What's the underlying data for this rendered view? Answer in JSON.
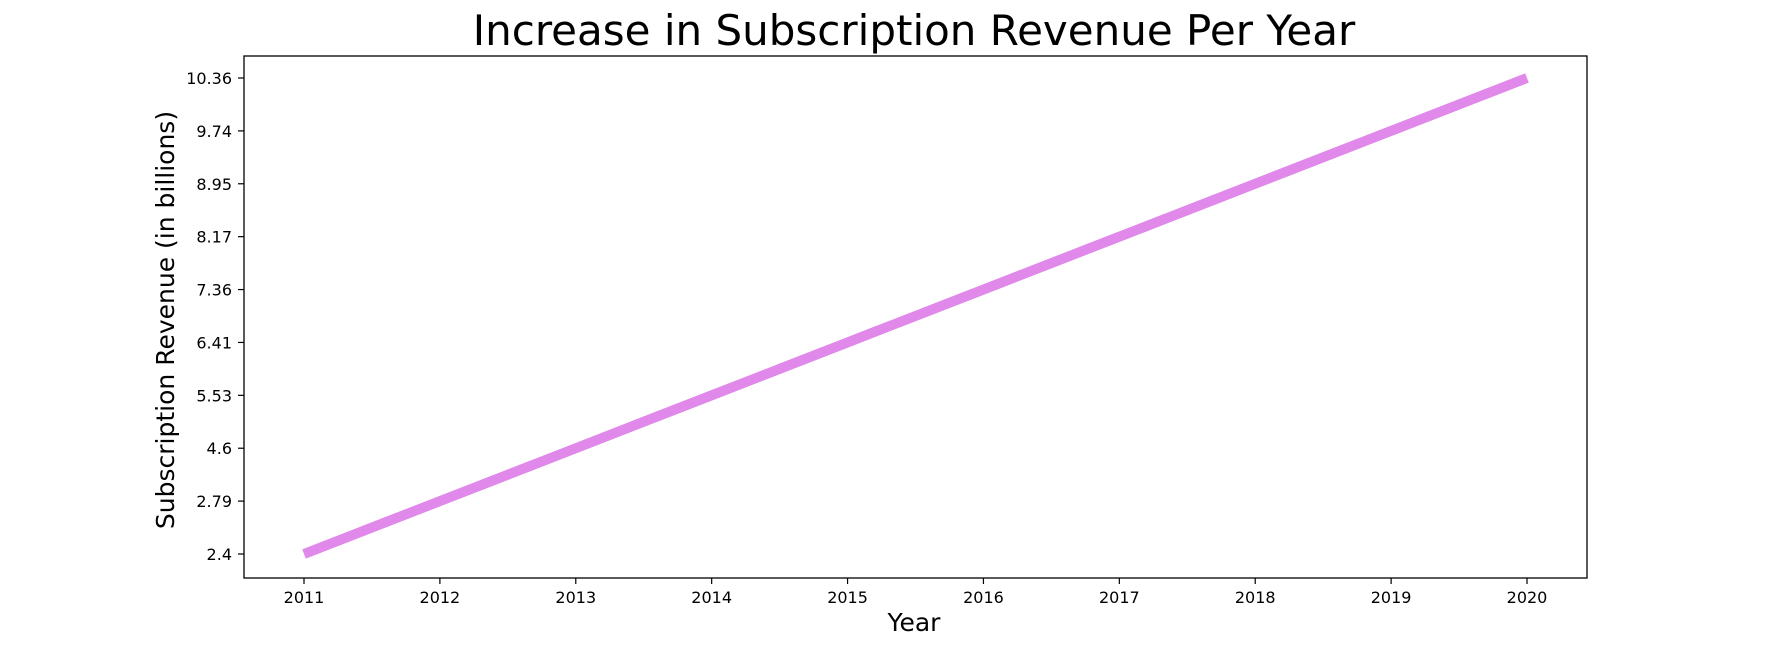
{
  "chart_data": {
    "type": "line",
    "title": "Increase in Subscription Revenue Per Year",
    "xlabel": "Year",
    "ylabel": "Subscription Revenue (in billions)",
    "x": [
      "2011",
      "2012",
      "2013",
      "2014",
      "2015",
      "2016",
      "2017",
      "2018",
      "2019",
      "2020"
    ],
    "y_tick_labels": [
      "2.4",
      "2.79",
      "4.6",
      "5.53",
      "6.41",
      "7.36",
      "8.17",
      "8.95",
      "9.74",
      "10.36"
    ],
    "series": [
      {
        "values": [
          2.4,
          2.79,
          4.6,
          5.53,
          6.41,
          7.36,
          8.17,
          8.95,
          9.74,
          10.36
        ],
        "color": "#e089ea"
      }
    ],
    "y_axis_scale": "categorical (each tick is one value, evenly spaced)",
    "grid": false,
    "legend": "none"
  }
}
